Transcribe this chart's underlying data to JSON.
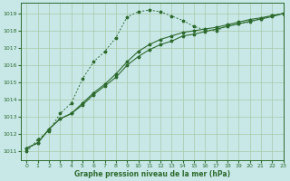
{
  "title": "Graphe pression niveau de la mer (hPa)",
  "background_color": "#c8e8e8",
  "grid_color": "#a8c8a8",
  "line_color": "#2d6a2d",
  "xlim": [
    -0.5,
    23
  ],
  "ylim": [
    1010.5,
    1019.6
  ],
  "yticks": [
    1011,
    1012,
    1013,
    1014,
    1015,
    1016,
    1017,
    1018,
    1019
  ],
  "xticks": [
    0,
    1,
    2,
    3,
    4,
    5,
    6,
    7,
    8,
    9,
    10,
    11,
    12,
    13,
    14,
    15,
    16,
    17,
    18,
    19,
    20,
    21,
    22,
    23
  ],
  "series1_x": [
    0,
    1,
    2,
    3,
    4,
    5,
    6,
    7,
    8,
    9,
    10,
    11,
    12,
    13,
    14,
    15,
    16,
    17,
    18,
    19,
    20,
    21,
    22,
    23
  ],
  "series1_y": [
    1011.0,
    1011.7,
    1012.2,
    1013.2,
    1013.8,
    1015.2,
    1016.2,
    1016.8,
    1017.6,
    1018.8,
    1019.1,
    1019.2,
    1019.1,
    1018.85,
    1018.6,
    1018.25,
    1018.05,
    1018.0,
    1018.3,
    1018.4,
    1018.5,
    1018.7,
    1018.9,
    1019.0
  ],
  "series2_x": [
    0,
    1,
    2,
    3,
    4,
    5,
    6,
    7,
    8,
    9,
    10,
    11,
    12,
    13,
    14,
    15,
    16,
    17,
    18,
    19,
    20,
    21,
    22,
    23
  ],
  "series2_y": [
    1011.2,
    1011.5,
    1012.3,
    1012.9,
    1013.2,
    1013.8,
    1014.4,
    1014.9,
    1015.5,
    1016.2,
    1016.8,
    1017.2,
    1017.5,
    1017.7,
    1017.9,
    1018.0,
    1018.1,
    1018.2,
    1018.35,
    1018.5,
    1018.65,
    1018.75,
    1018.87,
    1019.0
  ],
  "series3_x": [
    0,
    1,
    2,
    3,
    4,
    5,
    6,
    7,
    8,
    9,
    10,
    11,
    12,
    13,
    14,
    15,
    16,
    17,
    18,
    19,
    20,
    21,
    22,
    23
  ],
  "series3_y": [
    1011.2,
    1011.5,
    1012.3,
    1012.9,
    1013.2,
    1013.7,
    1014.3,
    1014.8,
    1015.3,
    1016.0,
    1016.5,
    1016.9,
    1017.2,
    1017.4,
    1017.7,
    1017.8,
    1017.95,
    1018.1,
    1018.25,
    1018.4,
    1018.55,
    1018.68,
    1018.82,
    1019.0
  ]
}
